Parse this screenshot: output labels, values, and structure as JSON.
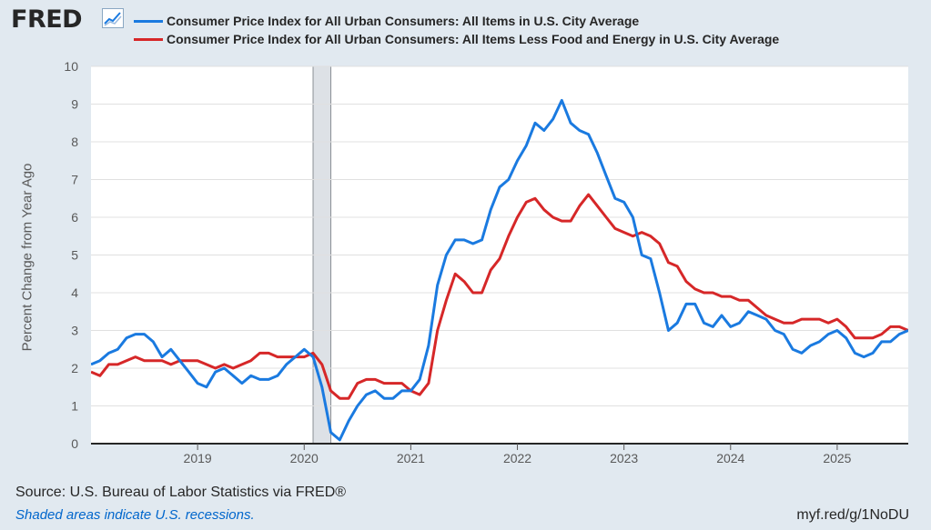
{
  "header": {
    "logo_text": "FRED",
    "logo_icon": "line-chart-icon"
  },
  "legend": [
    {
      "label": "Consumer Price Index for All Urban Consumers: All Items in U.S. City Average",
      "color": "#1a7ae0"
    },
    {
      "label": "Consumer Price Index for All Urban Consumers: All Items Less Food and Energy in U.S. City Average",
      "color": "#d62728"
    }
  ],
  "footer": {
    "source": "Source: U.S. Bureau of Labor Statistics via FRED®",
    "note": "Shaded areas indicate U.S. recessions.",
    "link": "myf.red/g/1NoDU"
  },
  "chart_data": {
    "type": "line",
    "ylabel": "Percent Change from Year Ago",
    "ylim": [
      0,
      10
    ],
    "yticks": [
      0,
      1,
      2,
      3,
      4,
      5,
      6,
      7,
      8,
      9,
      10
    ],
    "xlim": [
      "2018-01",
      "2025-09"
    ],
    "xticks": [
      "2019",
      "2020",
      "2021",
      "2022",
      "2023",
      "2024",
      "2025"
    ],
    "grid": true,
    "recession": {
      "start": "2020-02",
      "end": "2020-04"
    },
    "start": "2018-01",
    "series": [
      {
        "name": "Consumer Price Index for All Urban Consumers: All Items in U.S. City Average",
        "color": "#1a7ae0",
        "values": [
          2.1,
          2.2,
          2.4,
          2.5,
          2.8,
          2.9,
          2.9,
          2.7,
          2.3,
          2.5,
          2.2,
          1.9,
          1.6,
          1.5,
          1.9,
          2.0,
          1.8,
          1.6,
          1.8,
          1.7,
          1.7,
          1.8,
          2.1,
          2.3,
          2.5,
          2.3,
          1.5,
          0.3,
          0.1,
          0.6,
          1.0,
          1.3,
          1.4,
          1.2,
          1.2,
          1.4,
          1.4,
          1.7,
          2.6,
          4.2,
          5.0,
          5.4,
          5.4,
          5.3,
          5.4,
          6.2,
          6.8,
          7.0,
          7.5,
          7.9,
          8.5,
          8.3,
          8.6,
          9.1,
          8.5,
          8.3,
          8.2,
          7.7,
          7.1,
          6.5,
          6.4,
          6.0,
          5.0,
          4.9,
          4.0,
          3.0,
          3.2,
          3.7,
          3.7,
          3.2,
          3.1,
          3.4,
          3.1,
          3.2,
          3.5,
          3.4,
          3.3,
          3.0,
          2.9,
          2.5,
          2.4,
          2.6,
          2.7,
          2.9,
          3.0,
          2.8,
          2.4,
          2.3,
          2.4,
          2.7,
          2.7,
          2.9,
          3.0
        ],
        "data": [
          [
            "2018-01",
            2.1
          ],
          [
            "2018-02",
            2.2
          ],
          [
            "2018-03",
            2.4
          ],
          [
            "2018-04",
            2.5
          ],
          [
            "2018-05",
            2.8
          ],
          [
            "2018-06",
            2.9
          ],
          [
            "2018-07",
            2.9
          ],
          [
            "2018-08",
            2.7
          ],
          [
            "2018-09",
            2.3
          ],
          [
            "2018-10",
            2.5
          ],
          [
            "2018-11",
            2.2
          ],
          [
            "2018-12",
            1.9
          ],
          [
            "2019-01",
            1.6
          ],
          [
            "2019-02",
            1.5
          ],
          [
            "2019-03",
            1.9
          ],
          [
            "2019-04",
            2.0
          ],
          [
            "2019-05",
            1.8
          ],
          [
            "2019-06",
            1.6
          ],
          [
            "2019-07",
            1.8
          ],
          [
            "2019-08",
            1.7
          ],
          [
            "2019-09",
            1.7
          ],
          [
            "2019-10",
            1.8
          ],
          [
            "2019-11",
            2.1
          ],
          [
            "2019-12",
            2.3
          ],
          [
            "2020-01",
            2.5
          ],
          [
            "2020-02",
            2.3
          ],
          [
            "2020-03",
            1.5
          ],
          [
            "2020-04",
            0.3
          ],
          [
            "2020-05",
            0.1
          ],
          [
            "2020-06",
            0.6
          ],
          [
            "2020-07",
            1.0
          ],
          [
            "2020-08",
            1.3
          ],
          [
            "2020-09",
            1.4
          ],
          [
            "2020-10",
            1.2
          ],
          [
            "2020-11",
            1.2
          ],
          [
            "2020-12",
            1.4
          ],
          [
            "2021-01",
            1.4
          ],
          [
            "2021-02",
            1.7
          ],
          [
            "2021-03",
            2.6
          ],
          [
            "2021-04",
            4.2
          ],
          [
            "2021-05",
            5.0
          ],
          [
            "2021-06",
            5.4
          ],
          [
            "2021-07",
            5.4
          ],
          [
            "2021-08",
            5.3
          ],
          [
            "2021-09",
            5.4
          ],
          [
            "2021-10",
            6.2
          ],
          [
            "2021-11",
            6.8
          ],
          [
            "2021-12",
            7.0
          ],
          [
            "2022-01",
            7.5
          ],
          [
            "2022-02",
            7.9
          ],
          [
            "2022-03",
            8.5
          ],
          [
            "2022-04",
            8.3
          ],
          [
            "2022-05",
            8.6
          ],
          [
            "2022-06",
            9.1
          ],
          [
            "2022-07",
            8.5
          ],
          [
            "2022-08",
            8.3
          ],
          [
            "2022-09",
            8.2
          ],
          [
            "2022-10",
            7.7
          ],
          [
            "2022-11",
            7.1
          ],
          [
            "2022-12",
            6.5
          ],
          [
            "2023-01",
            6.4
          ],
          [
            "2023-02",
            6.0
          ],
          [
            "2023-03",
            5.0
          ],
          [
            "2023-04",
            4.9
          ],
          [
            "2023-05",
            4.0
          ],
          [
            "2023-06",
            3.0
          ],
          [
            "2023-07",
            3.2
          ],
          [
            "2023-08",
            3.7
          ],
          [
            "2023-09",
            3.7
          ],
          [
            "2023-10",
            3.2
          ],
          [
            "2023-11",
            3.1
          ],
          [
            "2023-12",
            3.4
          ],
          [
            "2024-01",
            3.1
          ],
          [
            "2024-02",
            3.2
          ],
          [
            "2024-03",
            3.5
          ],
          [
            "2024-04",
            3.4
          ],
          [
            "2024-05",
            3.3
          ],
          [
            "2024-06",
            3.0
          ],
          [
            "2024-07",
            2.9
          ],
          [
            "2024-08",
            2.5
          ],
          [
            "2024-09",
            2.4
          ],
          [
            "2024-10",
            2.6
          ],
          [
            "2024-11",
            2.7
          ],
          [
            "2024-12",
            2.9
          ],
          [
            "2025-01",
            3.0
          ],
          [
            "2025-02",
            2.8
          ],
          [
            "2025-03",
            2.4
          ],
          [
            "2025-04",
            2.3
          ],
          [
            "2025-05",
            2.4
          ],
          [
            "2025-06",
            2.7
          ],
          [
            "2025-07",
            2.7
          ],
          [
            "2025-08",
            2.9
          ],
          [
            "2025-09",
            3.0
          ]
        ]
      },
      {
        "name": "Consumer Price Index for All Urban Consumers: All Items Less Food and Energy in U.S. City Average",
        "color": "#d62728",
        "values": [
          1.9,
          1.8,
          2.1,
          2.1,
          2.2,
          2.3,
          2.2,
          2.2,
          2.2,
          2.1,
          2.2,
          2.2,
          2.2,
          2.1,
          2.0,
          2.1,
          2.0,
          2.1,
          2.2,
          2.4,
          2.4,
          2.3,
          2.3,
          2.3,
          2.3,
          2.4,
          2.1,
          1.4,
          1.2,
          1.2,
          1.6,
          1.7,
          1.7,
          1.6,
          1.6,
          1.6,
          1.4,
          1.3,
          1.6,
          3.0,
          3.8,
          4.5,
          4.3,
          4.0,
          4.0,
          4.6,
          4.9,
          5.5,
          6.0,
          6.4,
          6.5,
          6.2,
          6.0,
          5.9,
          5.9,
          6.3,
          6.6,
          6.3,
          6.0,
          5.7,
          5.6,
          5.5,
          5.6,
          5.5,
          5.3,
          4.8,
          4.7,
          4.3,
          4.1,
          4.0,
          4.0,
          3.9,
          3.9,
          3.8,
          3.8,
          3.6,
          3.4,
          3.3,
          3.2,
          3.2,
          3.3,
          3.3,
          3.3,
          3.2,
          3.3,
          3.1,
          2.8,
          2.8,
          2.8,
          2.9,
          3.1,
          3.1,
          3.0
        ],
        "data": [
          [
            "2018-01",
            1.9
          ],
          [
            "2018-02",
            1.8
          ],
          [
            "2018-03",
            2.1
          ],
          [
            "2018-04",
            2.1
          ],
          [
            "2018-05",
            2.2
          ],
          [
            "2018-06",
            2.3
          ],
          [
            "2018-07",
            2.2
          ],
          [
            "2018-08",
            2.2
          ],
          [
            "2018-09",
            2.2
          ],
          [
            "2018-10",
            2.1
          ],
          [
            "2018-11",
            2.2
          ],
          [
            "2018-12",
            2.2
          ],
          [
            "2019-01",
            2.2
          ],
          [
            "2019-02",
            2.1
          ],
          [
            "2019-03",
            2.0
          ],
          [
            "2019-04",
            2.1
          ],
          [
            "2019-05",
            2.0
          ],
          [
            "2019-06",
            2.1
          ],
          [
            "2019-07",
            2.2
          ],
          [
            "2019-08",
            2.4
          ],
          [
            "2019-09",
            2.4
          ],
          [
            "2019-10",
            2.3
          ],
          [
            "2019-11",
            2.3
          ],
          [
            "2019-12",
            2.3
          ],
          [
            "2020-01",
            2.3
          ],
          [
            "2020-02",
            2.4
          ],
          [
            "2020-03",
            2.1
          ],
          [
            "2020-04",
            1.4
          ],
          [
            "2020-05",
            1.2
          ],
          [
            "2020-06",
            1.2
          ],
          [
            "2020-07",
            1.6
          ],
          [
            "2020-08",
            1.7
          ],
          [
            "2020-09",
            1.7
          ],
          [
            "2020-10",
            1.6
          ],
          [
            "2020-11",
            1.6
          ],
          [
            "2020-12",
            1.6
          ],
          [
            "2021-01",
            1.4
          ],
          [
            "2021-02",
            1.3
          ],
          [
            "2021-03",
            1.6
          ],
          [
            "2021-04",
            3.0
          ],
          [
            "2021-05",
            3.8
          ],
          [
            "2021-06",
            4.5
          ],
          [
            "2021-07",
            4.3
          ],
          [
            "2021-08",
            4.0
          ],
          [
            "2021-09",
            4.0
          ],
          [
            "2021-10",
            4.6
          ],
          [
            "2021-11",
            4.9
          ],
          [
            "2021-12",
            5.5
          ],
          [
            "2022-01",
            6.0
          ],
          [
            "2022-02",
            6.4
          ],
          [
            "2022-03",
            6.5
          ],
          [
            "2022-04",
            6.2
          ],
          [
            "2022-05",
            6.0
          ],
          [
            "2022-06",
            5.9
          ],
          [
            "2022-07",
            5.9
          ],
          [
            "2022-08",
            6.3
          ],
          [
            "2022-09",
            6.6
          ],
          [
            "2022-10",
            6.3
          ],
          [
            "2022-11",
            6.0
          ],
          [
            "2022-12",
            5.7
          ],
          [
            "2023-01",
            5.6
          ],
          [
            "2023-02",
            5.5
          ],
          [
            "2023-03",
            5.6
          ],
          [
            "2023-04",
            5.5
          ],
          [
            "2023-05",
            5.3
          ],
          [
            "2023-06",
            4.8
          ],
          [
            "2023-07",
            4.7
          ],
          [
            "2023-08",
            4.3
          ],
          [
            "2023-09",
            4.1
          ],
          [
            "2023-10",
            4.0
          ],
          [
            "2023-11",
            4.0
          ],
          [
            "2023-12",
            3.9
          ],
          [
            "2024-01",
            3.9
          ],
          [
            "2024-02",
            3.8
          ],
          [
            "2024-03",
            3.8
          ],
          [
            "2024-04",
            3.6
          ],
          [
            "2024-05",
            3.4
          ],
          [
            "2024-06",
            3.3
          ],
          [
            "2024-07",
            3.2
          ],
          [
            "2024-08",
            3.2
          ],
          [
            "2024-09",
            3.3
          ],
          [
            "2024-10",
            3.3
          ],
          [
            "2024-11",
            3.3
          ],
          [
            "2024-12",
            3.2
          ],
          [
            "2025-01",
            3.3
          ],
          [
            "2025-02",
            3.1
          ],
          [
            "2025-03",
            2.8
          ],
          [
            "2025-04",
            2.8
          ],
          [
            "2025-05",
            2.8
          ],
          [
            "2025-06",
            2.9
          ],
          [
            "2025-07",
            3.1
          ],
          [
            "2025-08",
            3.1
          ],
          [
            "2025-09",
            3.0
          ]
        ]
      }
    ]
  }
}
